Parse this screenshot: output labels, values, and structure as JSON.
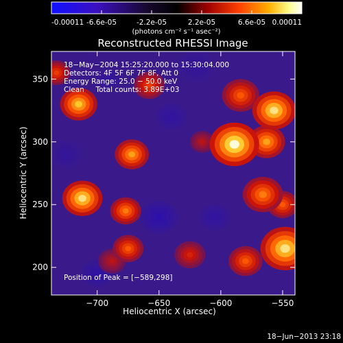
{
  "colorbar": {
    "ticks": [
      "-0.00011",
      "-6.6e-05",
      "-2.2e-05",
      "2.2e-05",
      "6.6e-05",
      "0.00011"
    ],
    "tick_values": [
      -0.00011,
      -6.6e-05,
      -2.2e-05,
      2.2e-05,
      6.6e-05,
      0.00011
    ],
    "range": [
      -0.00011,
      0.00011
    ],
    "units": "(photons cm⁻² s⁻¹ asec⁻²)",
    "colors": [
      "#1010ff",
      "#000000",
      "#cc0000",
      "#ff8800",
      "#ffff80",
      "#ffffff"
    ]
  },
  "chart_data": {
    "type": "heatmap",
    "title": "Reconstructed RHESSI Image",
    "xlabel": "Heliocentric X (arcsec)",
    "ylabel": "Heliocentric Y (arcsec)",
    "xlim": [
      -737,
      -540
    ],
    "ylim": [
      178,
      372
    ],
    "x_ticks": [
      -700,
      -650,
      -600,
      -550
    ],
    "y_ticks": [
      200,
      250,
      300,
      350
    ],
    "x_tick_labels": [
      "−700",
      "−650",
      "−600",
      "−550"
    ],
    "y_tick_labels": [
      "200",
      "250",
      "300",
      "350"
    ],
    "annotations": [
      "18−May−2004 15:25:20.000 to 15:30:04.000",
      "Detectors: 4F 5F 6F 7F 8F, Att 0",
      "Energy Range: 25.0 − 50.0 keV",
      "Clean     Total counts: 3.89E+03"
    ],
    "peak_label": "Position of Peak = [−589,298]",
    "peak": [
      -589,
      298
    ],
    "blobs": [
      {
        "x": -589,
        "y": 298,
        "r": 16,
        "v": 0.00011
      },
      {
        "x": -557,
        "y": 325,
        "r": 14,
        "v": 0.0001
      },
      {
        "x": -563,
        "y": 300,
        "r": 12,
        "v": 8e-05
      },
      {
        "x": -584,
        "y": 337,
        "r": 12,
        "v": 6e-05
      },
      {
        "x": -548,
        "y": 215,
        "r": 16,
        "v": 0.0001
      },
      {
        "x": -550,
        "y": 250,
        "r": 10,
        "v": 6e-05
      },
      {
        "x": -566,
        "y": 258,
        "r": 13,
        "v": 7e-05
      },
      {
        "x": -580,
        "y": 205,
        "r": 11,
        "v": 6e-05
      },
      {
        "x": -712,
        "y": 255,
        "r": 13,
        "v": 0.0001
      },
      {
        "x": -715,
        "y": 330,
        "r": 12,
        "v": 9e-05
      },
      {
        "x": -672,
        "y": 290,
        "r": 11,
        "v": 8e-05
      },
      {
        "x": -677,
        "y": 245,
        "r": 10,
        "v": 7e-05
      },
      {
        "x": -675,
        "y": 215,
        "r": 10,
        "v": 6e-05
      },
      {
        "x": -658,
        "y": 345,
        "r": 10,
        "v": 5e-05
      },
      {
        "x": -625,
        "y": 210,
        "r": 10,
        "v": 4e-05
      },
      {
        "x": -688,
        "y": 205,
        "r": 9,
        "v": 3e-05
      },
      {
        "x": -733,
        "y": 355,
        "r": 9,
        "v": 5e-05
      },
      {
        "x": -615,
        "y": 300,
        "r": 8,
        "v": 3e-05
      },
      {
        "x": -640,
        "y": 320,
        "r": 10,
        "v": -4e-05
      },
      {
        "x": -650,
        "y": 240,
        "r": 12,
        "v": -6e-05
      },
      {
        "x": -700,
        "y": 195,
        "r": 10,
        "v": -5e-05
      },
      {
        "x": -725,
        "y": 290,
        "r": 10,
        "v": -3e-05
      },
      {
        "x": -605,
        "y": 240,
        "r": 10,
        "v": -4e-05
      },
      {
        "x": -620,
        "y": 360,
        "r": 12,
        "v": -3e-05
      },
      {
        "x": -690,
        "y": 350,
        "r": 8,
        "v": -3e-05
      }
    ]
  },
  "footer": {
    "date": "18−Jun−2013 23:18"
  }
}
